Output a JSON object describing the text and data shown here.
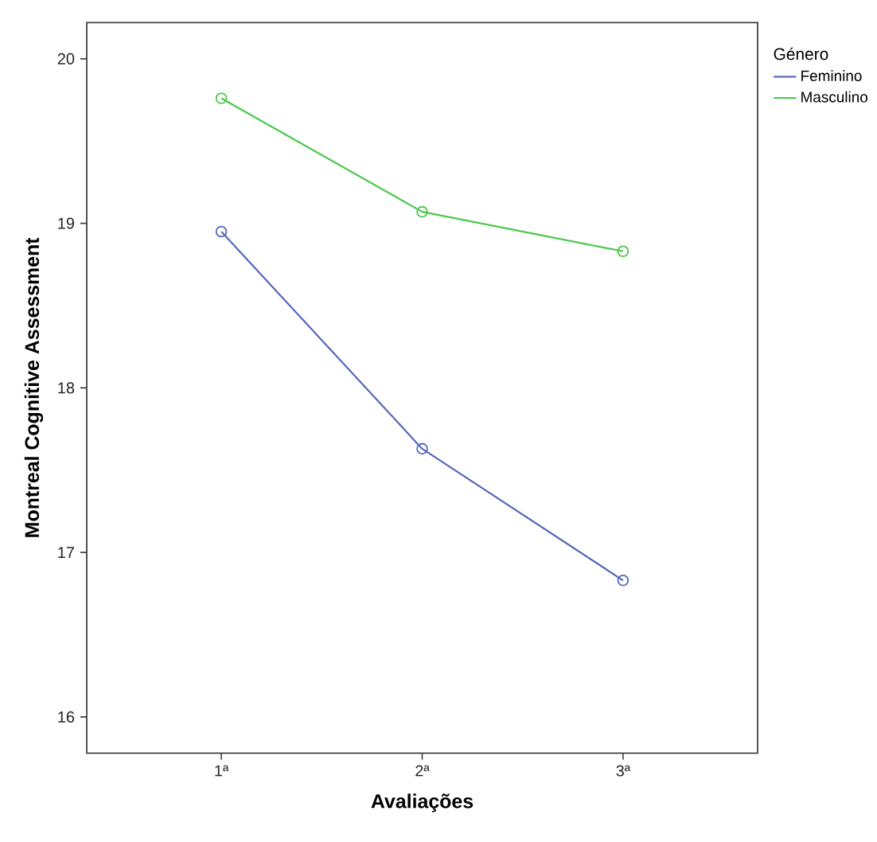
{
  "chart_data": {
    "type": "line",
    "xlabel": "Avaliações",
    "ylabel": "Montreal Cognitive Assessment",
    "legend_title": "Género",
    "categories": [
      "1ª",
      "2ª",
      "3ª"
    ],
    "series": [
      {
        "name": "Feminino",
        "color": "#5566bb",
        "values": [
          18.95,
          17.63,
          16.83
        ]
      },
      {
        "name": "Masculino",
        "color": "#4cc84c",
        "values": [
          19.76,
          19.07,
          18.83
        ]
      }
    ],
    "ylim": [
      15.78,
      20.22
    ],
    "yticks": [
      16,
      17,
      18,
      19,
      20
    ],
    "legend": "right",
    "marker": "circle",
    "line_style": "solid"
  }
}
